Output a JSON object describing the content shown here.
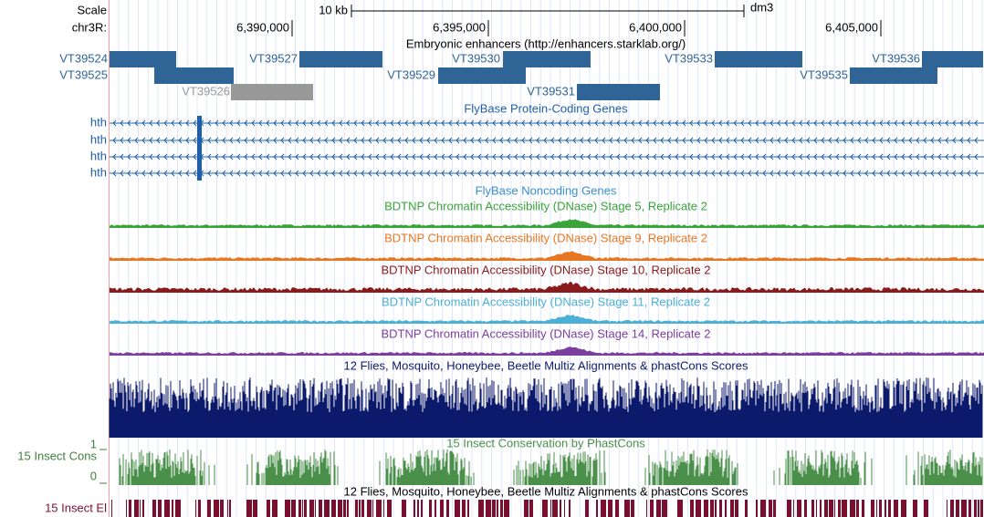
{
  "scale": {
    "label": "Scale",
    "bar_label": "10 kb",
    "assembly": "dm3"
  },
  "chrom_label": "chr3R:",
  "positions": [
    "6,390,000",
    "6,395,000",
    "6,400,000",
    "6,405,000"
  ],
  "enhancers": {
    "title": "Embryonic enhancers (http://enhancers.starklab.org/)",
    "items": [
      "VT39524",
      "VT39525",
      "VT39526",
      "VT39527",
      "VT39529",
      "VT39530",
      "VT39531",
      "VT39533",
      "VT39535",
      "VT39536"
    ]
  },
  "protein_genes": {
    "title": "FlyBase Protein-Coding Genes",
    "rows": [
      "hth",
      "hth",
      "hth",
      "hth"
    ]
  },
  "noncoding_genes": {
    "title": "FlyBase Noncoding Genes"
  },
  "dnase_tracks": [
    "BDTNP Chromatin Accessibility (DNase) Stage 5, Replicate 2",
    "BDTNP Chromatin Accessibility (DNase) Stage 9, Replicate 2",
    "BDTNP Chromatin Accessibility (DNase) Stage 10, Replicate 2",
    "BDTNP Chromatin Accessibility (DNase) Stage 11, Replicate 2",
    "BDTNP Chromatin Accessibility (DNase) Stage 14, Replicate 2"
  ],
  "multiz": {
    "title": "12 Flies, Mosquito, Honeybee, Beetle Multiz Alignments & phastCons Scores"
  },
  "phastcons": {
    "title": "15 Insect Conservation by PhastCons",
    "side_label": "15 Insect Cons",
    "max_label": "1",
    "min_label": "0"
  },
  "elements": {
    "title": "12 Flies, Mosquito, Honeybee, Beetle Multiz Alignments & phastCons Scores",
    "side_label": "15 Insect El"
  }
}
